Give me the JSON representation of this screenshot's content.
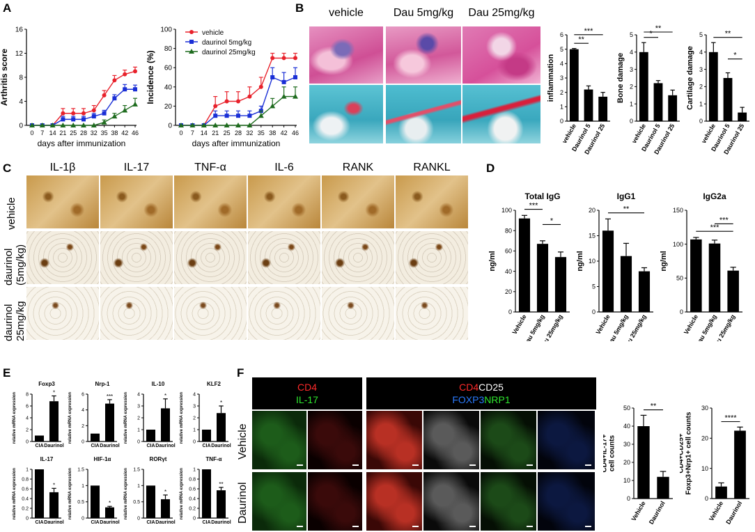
{
  "panels": {
    "A": "A",
    "B": "B",
    "C": "C",
    "D": "D",
    "E": "E",
    "F": "F"
  },
  "panelA": {
    "chart1": {
      "ylabel": "Arthritis score",
      "xlabel": "days after immunization"
    },
    "chart2": {
      "ylabel": "Incidence (%)",
      "xlabel": "days after immunization",
      "legend": [
        "vehicle",
        "daurinol 5mg/kg",
        "daurinol 25mg/kg"
      ]
    }
  },
  "panelB": {
    "cols": [
      "vehicle",
      "Dau 5mg/kg",
      "Dau 25mg/kg"
    ]
  },
  "panelC": {
    "cols": [
      "IL-1β",
      "IL-17",
      "TNF-α",
      "IL-6",
      "RANK",
      "RANKL"
    ],
    "rows": [
      "vehicle",
      "daurinol\n(5mg/kg)",
      "daurinol\n25mg/kg"
    ]
  },
  "panelF": {
    "hdr1a": "CD4",
    "hdr1b": "IL-17",
    "hdr2a": "CD4",
    "hdr2b": "CD25",
    "hdr2c": "FOXP3",
    "hdr2d": "NRP1",
    "rows": [
      "Vehicle",
      "Daurinol"
    ]
  },
  "colors": {
    "vehicle": "#e8212b",
    "dau5": "#1a2fd6",
    "dau25": "#1e6b1e",
    "stain_he": "#d95a9c",
    "stain_sf": "#3ab3c4",
    "ihc": "#c8953e"
  },
  "chart_data": [
    {
      "id": "A1",
      "type": "line",
      "ylabel": "Arthritis score",
      "xlabel": "days after immunization",
      "x": [
        0,
        7,
        14,
        21,
        25,
        28,
        32,
        35,
        38,
        42,
        46
      ],
      "xticks": [
        "0",
        "7",
        "14",
        "21",
        "25",
        "28",
        "32",
        "35",
        "38",
        "42",
        "46"
      ],
      "ylim": [
        0,
        16
      ],
      "yticks": [
        0,
        4,
        8,
        12,
        16
      ],
      "series": [
        {
          "color": "#e8212b",
          "marker": "circle",
          "values": [
            0,
            0,
            0,
            2,
            2,
            2,
            2.5,
            5,
            7.5,
            8.5,
            9
          ],
          "err": [
            0,
            0,
            0,
            0.8,
            0.8,
            0.8,
            0.8,
            0.8,
            0.8,
            0.7,
            0.7
          ]
        },
        {
          "color": "#1a2fd6",
          "marker": "square",
          "values": [
            0,
            0,
            0,
            1,
            1,
            1,
            1.5,
            2,
            4.5,
            6,
            6
          ],
          "err": [
            0,
            0,
            0,
            0.5,
            0.5,
            0.5,
            0.5,
            0.5,
            0.6,
            0.8,
            0.7
          ]
        },
        {
          "color": "#1e6b1e",
          "marker": "triangle",
          "values": [
            0,
            0,
            0,
            0,
            0,
            0,
            0,
            0.5,
            1.5,
            2.5,
            3.5
          ],
          "err": [
            0,
            0,
            0,
            0,
            0,
            0,
            0,
            0.4,
            0.5,
            0.8,
            1.0
          ]
        }
      ]
    },
    {
      "id": "A2",
      "type": "line",
      "ylabel": "Incidence (%)",
      "xlabel": "days after immunization",
      "x": [
        0,
        7,
        14,
        21,
        25,
        28,
        32,
        35,
        38,
        42,
        46
      ],
      "xticks": [
        "0",
        "7",
        "14",
        "21",
        "25",
        "28",
        "32",
        "35",
        "38",
        "42",
        "46"
      ],
      "ylim": [
        0,
        100
      ],
      "yticks": [
        0,
        20,
        40,
        60,
        80,
        100
      ],
      "series": [
        {
          "name": "vehicle",
          "color": "#e8212b",
          "marker": "circle",
          "values": [
            0,
            0,
            0,
            20,
            25,
            25,
            30,
            40,
            70,
            70,
            70
          ],
          "err": [
            0,
            0,
            0,
            10,
            10,
            10,
            10,
            10,
            5,
            5,
            5
          ]
        },
        {
          "name": "daurinol 5mg/kg",
          "color": "#1a2fd6",
          "marker": "square",
          "values": [
            0,
            0,
            0,
            10,
            10,
            10,
            10,
            15,
            50,
            45,
            50
          ],
          "err": [
            0,
            0,
            0,
            5,
            5,
            5,
            5,
            5,
            10,
            10,
            10
          ]
        },
        {
          "name": "daurinol 25mg/kg",
          "color": "#1e6b1e",
          "marker": "triangle",
          "values": [
            0,
            0,
            0,
            0,
            0,
            0,
            0,
            10,
            20,
            30,
            30
          ],
          "err": [
            0,
            0,
            0,
            0,
            0,
            0,
            0,
            5,
            8,
            10,
            10
          ]
        }
      ]
    },
    {
      "id": "B1",
      "type": "bar",
      "ylabel": "inflammation",
      "categories": [
        "vehicle",
        "Daurinol 5",
        "Daurinol 25"
      ],
      "values": [
        5,
        2.2,
        1.7
      ],
      "err": [
        0.05,
        0.25,
        0.3
      ],
      "ylim": [
        0,
        6
      ],
      "yticks": [
        0,
        1,
        2,
        3,
        4,
        5,
        6
      ],
      "sig": [
        {
          "a": 0,
          "b": 1,
          "t": "**"
        },
        {
          "a": 0,
          "b": 2,
          "t": "***"
        }
      ]
    },
    {
      "id": "B2",
      "type": "bar",
      "ylabel": "Bone damage",
      "categories": [
        "vehicle",
        "Daurinol 5",
        "Daurinol 25"
      ],
      "values": [
        4,
        2.2,
        1.5
      ],
      "err": [
        0.55,
        0.15,
        0.3
      ],
      "ylim": [
        0,
        5
      ],
      "yticks": [
        0,
        1,
        2,
        3,
        4,
        5
      ],
      "sig": [
        {
          "a": 0,
          "b": 1,
          "t": "*"
        },
        {
          "a": 0,
          "b": 2,
          "t": "**"
        }
      ]
    },
    {
      "id": "B3",
      "type": "bar",
      "ylabel": "Cartilage damage",
      "categories": [
        "vehicle",
        "Daurinol 5",
        "Daurinol 25"
      ],
      "values": [
        4,
        2.5,
        0.5
      ],
      "err": [
        0.55,
        0.3,
        0.3
      ],
      "ylim": [
        0,
        5
      ],
      "yticks": [
        0,
        1,
        2,
        3,
        4,
        5
      ],
      "sig": [
        {
          "a": 0,
          "b": 2,
          "t": "**"
        },
        {
          "a": 1,
          "b": 2,
          "t": "*"
        }
      ]
    },
    {
      "id": "D1",
      "type": "bar",
      "title": "Total IgG",
      "ylabel": "ng/ml",
      "categories": [
        "Vehicle",
        "Dau 5mg/kg",
        "Dau 25mg/kg"
      ],
      "values": [
        92,
        67,
        54
      ],
      "err": [
        3,
        3,
        5
      ],
      "ylim": [
        0,
        100
      ],
      "yticks": [
        0,
        20,
        40,
        60,
        80,
        100
      ],
      "sig": [
        {
          "a": 0,
          "b": 1,
          "t": "***"
        },
        {
          "a": 1,
          "b": 2,
          "t": "*"
        }
      ]
    },
    {
      "id": "D2",
      "type": "bar",
      "title": "IgG1",
      "ylabel": "ng/ml",
      "categories": [
        "Vehicle",
        "Dau 5mg/kg",
        "Dau 25mg/kg"
      ],
      "values": [
        16,
        11,
        8
      ],
      "err": [
        2.3,
        2.5,
        0.7
      ],
      "ylim": [
        0,
        20
      ],
      "yticks": [
        0,
        5,
        10,
        15,
        20
      ],
      "sig": [
        {
          "a": 0,
          "b": 2,
          "t": "**"
        }
      ]
    },
    {
      "id": "D3",
      "type": "bar",
      "title": "IgG2a",
      "ylabel": "ng/ml",
      "categories": [
        "Vehicle",
        "Dau 5mg/kg",
        "Dau 25mg/kg"
      ],
      "values": [
        107,
        101,
        61
      ],
      "err": [
        3,
        5,
        5
      ],
      "ylim": [
        0,
        150
      ],
      "yticks": [
        0,
        50,
        100,
        150
      ],
      "sig": [
        {
          "a": 0,
          "b": 2,
          "t": "***"
        },
        {
          "a": 1,
          "b": 2,
          "t": "***"
        }
      ]
    },
    {
      "id": "E1",
      "type": "bar",
      "title": "Foxp3",
      "ylabel": "relative mRNA expression",
      "categories": [
        "CIA",
        "Daurinol"
      ],
      "values": [
        1,
        6.8
      ],
      "err": [
        0,
        0.9
      ],
      "ylim": [
        0,
        8
      ],
      "yticks": [
        0,
        2,
        4,
        6,
        8
      ],
      "sig": [
        {
          "a": 1,
          "b": 1,
          "t": "*"
        }
      ]
    },
    {
      "id": "E2",
      "type": "bar",
      "title": "Nrp-1",
      "ylabel": "relative mRNA expression",
      "categories": [
        "CIA",
        "Daurinol"
      ],
      "values": [
        1,
        4.8
      ],
      "err": [
        0,
        0.5
      ],
      "ylim": [
        0,
        6
      ],
      "yticks": [
        0,
        2,
        4,
        6
      ],
      "sig": [
        {
          "a": 1,
          "b": 1,
          "t": "***"
        }
      ]
    },
    {
      "id": "E3",
      "type": "bar",
      "title": "IL-10",
      "ylabel": "relative mRNA expression",
      "categories": [
        "CIA",
        "Daurinol"
      ],
      "values": [
        1,
        2.8
      ],
      "err": [
        0,
        0.8
      ],
      "ylim": [
        0,
        4
      ],
      "yticks": [
        0,
        1,
        2,
        3,
        4
      ],
      "sig": [
        {
          "a": 1,
          "b": 1,
          "t": "*"
        }
      ]
    },
    {
      "id": "E4",
      "type": "bar",
      "title": "KLF2",
      "ylabel": "relative mRNA expression",
      "categories": [
        "CIA",
        "Daurinol"
      ],
      "values": [
        1,
        2.4
      ],
      "err": [
        0,
        0.6
      ],
      "ylim": [
        0,
        4
      ],
      "yticks": [
        0,
        1,
        2,
        3,
        4
      ],
      "sig": [
        {
          "a": 1,
          "b": 1,
          "t": "*"
        }
      ]
    },
    {
      "id": "E5",
      "type": "bar",
      "title": "IL-17",
      "ylabel": "relative mRNA expression",
      "categories": [
        "CIA",
        "Daurinol"
      ],
      "values": [
        1,
        0.53
      ],
      "err": [
        0,
        0.08
      ],
      "ylim": [
        0,
        1
      ],
      "yticks": [
        0,
        0.2,
        0.4,
        0.6,
        0.8,
        1.0
      ],
      "sig": [
        {
          "a": 1,
          "b": 1,
          "t": "*"
        }
      ]
    },
    {
      "id": "E6",
      "type": "bar",
      "title": "HIF-1α",
      "ylabel": "relative mRNA expression",
      "categories": [
        "CIA",
        "Daurinol"
      ],
      "values": [
        1,
        0.33
      ],
      "err": [
        0,
        0.03
      ],
      "ylim": [
        0,
        1.5
      ],
      "yticks": [
        0,
        0.5,
        1.0,
        1.5
      ],
      "sig": [
        {
          "a": 1,
          "b": 1,
          "t": "*"
        }
      ]
    },
    {
      "id": "E7",
      "type": "bar",
      "title": "RORγt",
      "ylabel": "relative mRNA expression",
      "categories": [
        "CIA",
        "Daurinol"
      ],
      "values": [
        1,
        0.58
      ],
      "err": [
        0,
        0.13
      ],
      "ylim": [
        0,
        1.5
      ],
      "yticks": [
        0,
        0.5,
        1.0,
        1.5
      ],
      "sig": [
        {
          "a": 1,
          "b": 1,
          "t": "*"
        }
      ]
    },
    {
      "id": "E8",
      "type": "bar",
      "title": "TNF-α",
      "ylabel": "relative mRNA expression",
      "categories": [
        "CIA",
        "Daurinol"
      ],
      "values": [
        1,
        0.57
      ],
      "err": [
        0,
        0.06
      ],
      "ylim": [
        0,
        1
      ],
      "yticks": [
        0,
        0.2,
        0.4,
        0.6,
        0.8,
        1.0
      ],
      "sig": [
        {
          "a": 1,
          "b": 1,
          "t": "**"
        }
      ]
    },
    {
      "id": "F1",
      "type": "bar",
      "ylabel": "CD4+IL-17+\ncell counts",
      "categories": [
        "Vehicle",
        "Daurinol"
      ],
      "values": [
        40,
        12
      ],
      "err": [
        6,
        3
      ],
      "ylim": [
        0,
        50
      ],
      "yticks": [
        0,
        10,
        20,
        30,
        40,
        50
      ],
      "sig": [
        {
          "a": 0,
          "b": 1,
          "t": "**"
        }
      ]
    },
    {
      "id": "F2",
      "type": "bar",
      "ylabel": "CD4+CD25+\nFoxp3+Nrp1+ cell counts",
      "categories": [
        "Vehicle",
        "Daurinol"
      ],
      "values": [
        4,
        22.5
      ],
      "err": [
        1.2,
        1.2
      ],
      "ylim": [
        0,
        30
      ],
      "yticks": [
        0,
        10,
        20,
        30
      ],
      "sig": [
        {
          "a": 0,
          "b": 1,
          "t": "****"
        }
      ]
    }
  ]
}
